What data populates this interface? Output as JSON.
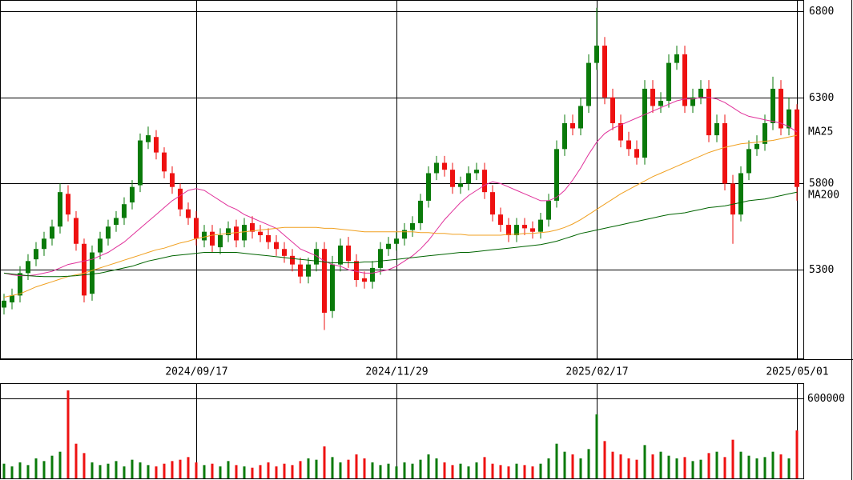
{
  "chart_data": {
    "type": "candlestick",
    "up_color": "#0a7a0a",
    "down_color": "#ee1111",
    "categories": [
      null,
      null,
      null,
      null,
      null,
      null,
      null,
      null,
      null,
      null,
      null,
      null,
      null,
      null,
      null,
      null,
      null,
      null,
      null,
      null,
      null,
      null,
      null,
      null,
      "2024/09/17",
      null,
      null,
      null,
      null,
      null,
      null,
      null,
      null,
      null,
      null,
      null,
      null,
      null,
      null,
      null,
      null,
      null,
      null,
      null,
      null,
      null,
      null,
      null,
      null,
      "2024/11/29",
      null,
      null,
      null,
      null,
      null,
      null,
      null,
      null,
      null,
      null,
      null,
      null,
      null,
      null,
      null,
      null,
      null,
      null,
      null,
      null,
      null,
      null,
      null,
      null,
      "2025/02/17",
      null,
      null,
      null,
      null,
      null,
      null,
      null,
      null,
      null,
      null,
      null,
      null,
      null,
      null,
      null,
      null,
      null,
      null,
      null,
      null,
      null,
      null,
      null,
      null,
      "2025/05/01"
    ],
    "open": [
      5080,
      5110,
      5150,
      5280,
      5360,
      5420,
      5480,
      5550,
      5740,
      5600,
      5450,
      5160,
      5400,
      5480,
      5560,
      5600,
      5690,
      5790,
      6040,
      6070,
      5980,
      5860,
      5770,
      5650,
      5600,
      5470,
      5520,
      5430,
      5500,
      5550,
      5470,
      5570,
      5520,
      5500,
      5460,
      5420,
      5380,
      5330,
      5260,
      5330,
      5420,
      5060,
      5330,
      5440,
      5350,
      5250,
      5230,
      5310,
      5420,
      5450,
      5480,
      5530,
      5570,
      5700,
      5860,
      5920,
      5880,
      5780,
      5800,
      5860,
      5880,
      5750,
      5620,
      5560,
      5500,
      5560,
      5540,
      5520,
      5590,
      5700,
      6000,
      6150,
      6120,
      6250,
      6500,
      6600,
      6300,
      6150,
      6050,
      6000,
      5950,
      6350,
      6250,
      6280,
      6500,
      6550,
      6250,
      6300,
      6350,
      6080,
      6150,
      5800,
      5620,
      5860,
      6000,
      6030,
      6150,
      6350,
      6120,
      6230
    ],
    "high": [
      5160,
      5190,
      5320,
      5390,
      5460,
      5520,
      5590,
      5800,
      5790,
      5640,
      5480,
      5440,
      5520,
      5590,
      5640,
      5720,
      5820,
      6090,
      6130,
      6110,
      6010,
      5900,
      5800,
      5690,
      5640,
      5560,
      5560,
      5540,
      5580,
      5590,
      5600,
      5610,
      5560,
      5540,
      5500,
      5460,
      5420,
      5370,
      5370,
      5460,
      5460,
      5380,
      5480,
      5490,
      5390,
      5290,
      5350,
      5460,
      5490,
      5520,
      5570,
      5610,
      5740,
      5900,
      5960,
      5960,
      5920,
      5840,
      5900,
      5920,
      5920,
      5790,
      5660,
      5600,
      5600,
      5600,
      5580,
      5630,
      5740,
      6050,
      6200,
      6200,
      6300,
      6550,
      6820,
      6650,
      6350,
      6200,
      6100,
      6050,
      6400,
      6400,
      6330,
      6550,
      6600,
      6600,
      6350,
      6400,
      6400,
      6200,
      6200,
      5850,
      5900,
      6050,
      6080,
      6200,
      6420,
      6400,
      6300,
      6260
    ],
    "low": [
      5040,
      5070,
      5110,
      5240,
      5320,
      5380,
      5440,
      5510,
      5580,
      5410,
      5110,
      5120,
      5360,
      5440,
      5520,
      5560,
      5650,
      5750,
      6000,
      5940,
      5830,
      5740,
      5610,
      5560,
      5440,
      5430,
      5400,
      5390,
      5460,
      5430,
      5430,
      5480,
      5460,
      5420,
      5380,
      5340,
      5290,
      5220,
      5220,
      5290,
      4950,
      5020,
      5290,
      5310,
      5200,
      5190,
      5190,
      5270,
      5380,
      5410,
      5440,
      5490,
      5530,
      5660,
      5820,
      5840,
      5740,
      5740,
      5760,
      5820,
      5710,
      5580,
      5520,
      5460,
      5460,
      5500,
      5480,
      5480,
      5550,
      5660,
      5960,
      6080,
      6080,
      6210,
      6460,
      6260,
      6110,
      6010,
      5960,
      5910,
      5910,
      6210,
      6210,
      6240,
      6460,
      6210,
      6210,
      6260,
      6040,
      6040,
      5760,
      5450,
      5580,
      5820,
      5960,
      5990,
      6110,
      6080,
      6080,
      5700
    ],
    "close": [
      5120,
      5150,
      5280,
      5350,
      5420,
      5480,
      5550,
      5750,
      5620,
      5450,
      5150,
      5400,
      5480,
      5550,
      5600,
      5680,
      5780,
      6050,
      6080,
      5980,
      5870,
      5780,
      5650,
      5600,
      5480,
      5520,
      5440,
      5500,
      5540,
      5470,
      5560,
      5520,
      5500,
      5460,
      5420,
      5380,
      5330,
      5260,
      5330,
      5420,
      5050,
      5330,
      5440,
      5350,
      5240,
      5230,
      5310,
      5420,
      5450,
      5480,
      5530,
      5570,
      5700,
      5860,
      5920,
      5880,
      5780,
      5800,
      5860,
      5880,
      5750,
      5620,
      5560,
      5500,
      5560,
      5540,
      5520,
      5590,
      5700,
      6000,
      6150,
      6120,
      6250,
      6500,
      6600,
      6300,
      6150,
      6050,
      6000,
      5950,
      6350,
      6250,
      6280,
      6500,
      6550,
      6250,
      6300,
      6350,
      6080,
      6150,
      5800,
      5620,
      5860,
      6000,
      6030,
      6150,
      6350,
      6120,
      6230,
      5780
    ],
    "volume": [
      110000,
      90000,
      120000,
      100000,
      150000,
      130000,
      170000,
      200000,
      660000,
      260000,
      190000,
      120000,
      100000,
      110000,
      130000,
      90000,
      140000,
      120000,
      100000,
      90000,
      110000,
      130000,
      140000,
      160000,
      120000,
      100000,
      110000,
      90000,
      130000,
      100000,
      90000,
      80000,
      100000,
      120000,
      90000,
      110000,
      100000,
      130000,
      150000,
      140000,
      240000,
      160000,
      120000,
      140000,
      180000,
      150000,
      120000,
      100000,
      110000,
      90000,
      120000,
      110000,
      140000,
      180000,
      150000,
      120000,
      100000,
      110000,
      90000,
      120000,
      160000,
      110000,
      100000,
      90000,
      110000,
      100000,
      90000,
      110000,
      150000,
      260000,
      200000,
      180000,
      150000,
      220000,
      480000,
      280000,
      200000,
      180000,
      150000,
      140000,
      250000,
      180000,
      200000,
      170000,
      150000,
      160000,
      130000,
      140000,
      190000,
      200000,
      160000,
      290000,
      200000,
      170000,
      150000,
      160000,
      200000,
      180000,
      150000,
      360000
    ],
    "series": [
      {
        "color": "#e0309a",
        "values": [
          5280,
          5270,
          5265,
          5265,
          5270,
          5280,
          5290,
          5310,
          5330,
          5340,
          5350,
          5360,
          5380,
          5400,
          5430,
          5460,
          5500,
          5540,
          5580,
          5620,
          5660,
          5700,
          5730,
          5760,
          5770,
          5760,
          5730,
          5700,
          5670,
          5650,
          5620,
          5600,
          5580,
          5560,
          5540,
          5500,
          5460,
          5420,
          5400,
          5380,
          5350,
          5330,
          5320,
          5300,
          5290,
          5280,
          5280,
          5290,
          5300,
          5320,
          5350,
          5380,
          5420,
          5470,
          5530,
          5590,
          5640,
          5690,
          5730,
          5760,
          5790,
          5810,
          5800,
          5780,
          5760,
          5740,
          5720,
          5700,
          5700,
          5720,
          5760,
          5820,
          5890,
          5970,
          6040,
          6090,
          6120,
          6140,
          6160,
          6180,
          6200,
          6220,
          6240,
          6260,
          6280,
          6290,
          6290,
          6300,
          6300,
          6290,
          6270,
          6240,
          6210,
          6190,
          6180,
          6170,
          6160,
          6150,
          6130,
          6100
        ]
      },
      {
        "name": "MA25",
        "color": "#f0a020",
        "values": [
          5140,
          5150,
          5160,
          5180,
          5200,
          5215,
          5230,
          5245,
          5260,
          5270,
          5280,
          5295,
          5310,
          5325,
          5340,
          5355,
          5370,
          5385,
          5400,
          5415,
          5425,
          5440,
          5455,
          5465,
          5480,
          5490,
          5500,
          5505,
          5510,
          5515,
          5520,
          5525,
          5530,
          5535,
          5540,
          5545,
          5545,
          5545,
          5545,
          5545,
          5540,
          5540,
          5535,
          5530,
          5525,
          5520,
          5520,
          5520,
          5520,
          5520,
          5520,
          5520,
          5515,
          5515,
          5510,
          5510,
          5505,
          5505,
          5500,
          5500,
          5500,
          5500,
          5500,
          5505,
          5505,
          5510,
          5510,
          5515,
          5520,
          5530,
          5545,
          5565,
          5590,
          5620,
          5650,
          5680,
          5710,
          5740,
          5765,
          5790,
          5815,
          5840,
          5860,
          5880,
          5900,
          5920,
          5940,
          5960,
          5980,
          5995,
          6010,
          6020,
          6030,
          6035,
          6040,
          6045,
          6050,
          6060,
          6070,
          6080
        ]
      },
      {
        "name": "MA200",
        "color": "#006400",
        "values": [
          5280,
          5275,
          5270,
          5265,
          5262,
          5260,
          5260,
          5260,
          5262,
          5265,
          5270,
          5275,
          5280,
          5290,
          5300,
          5310,
          5320,
          5335,
          5350,
          5360,
          5370,
          5380,
          5385,
          5390,
          5395,
          5400,
          5400,
          5400,
          5400,
          5400,
          5395,
          5390,
          5385,
          5380,
          5375,
          5370,
          5365,
          5360,
          5355,
          5350,
          5345,
          5340,
          5340,
          5340,
          5340,
          5345,
          5345,
          5350,
          5355,
          5360,
          5365,
          5370,
          5375,
          5380,
          5385,
          5390,
          5395,
          5400,
          5400,
          5405,
          5410,
          5415,
          5420,
          5425,
          5430,
          5435,
          5440,
          5445,
          5455,
          5465,
          5480,
          5495,
          5510,
          5520,
          5530,
          5540,
          5550,
          5560,
          5570,
          5580,
          5590,
          5600,
          5610,
          5620,
          5625,
          5630,
          5640,
          5650,
          5660,
          5665,
          5670,
          5680,
          5690,
          5700,
          5705,
          5710,
          5720,
          5730,
          5740,
          5750
        ]
      }
    ],
    "ylim": [
      4785,
      6865
    ],
    "yticks": [
      5300,
      5800,
      6300,
      6800
    ],
    "volume_ylim": [
      0,
      708000
    ],
    "volume_yticks": [
      600000
    ]
  }
}
